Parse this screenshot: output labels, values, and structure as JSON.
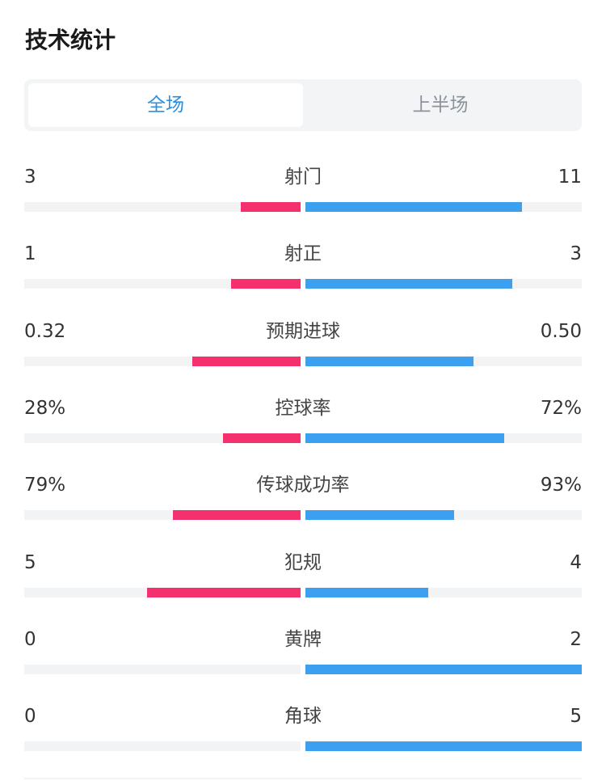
{
  "page": {
    "title": "技术统计"
  },
  "tabs": [
    {
      "label": "全场",
      "active": true
    },
    {
      "label": "上半场",
      "active": false
    }
  ],
  "colors": {
    "home": "#f5306f",
    "away": "#3d9ff0",
    "active_tab": "#2a8fe0"
  },
  "stats": [
    {
      "label": "射门",
      "home": "3",
      "away": "11",
      "home_fill": 0.216,
      "away_fill": 0.784
    },
    {
      "label": "射正",
      "home": "1",
      "away": "3",
      "home_fill": 0.251,
      "away_fill": 0.749
    },
    {
      "label": "预期进球",
      "home": "0.32",
      "away": "0.50",
      "home_fill": 0.392,
      "away_fill": 0.608
    },
    {
      "label": "控球率",
      "home": "28%",
      "away": "72%",
      "home_fill": 0.28,
      "away_fill": 0.72
    },
    {
      "label": "传球成功率",
      "home": "79%",
      "away": "93%",
      "home_fill": 0.462,
      "away_fill": 0.538
    },
    {
      "label": "犯规",
      "home": "5",
      "away": "4",
      "home_fill": 0.556,
      "away_fill": 0.444
    },
    {
      "label": "黄牌",
      "home": "0",
      "away": "2",
      "home_fill": 0.0,
      "away_fill": 1.0
    },
    {
      "label": "角球",
      "home": "0",
      "away": "5",
      "home_fill": 0.0,
      "away_fill": 1.0
    }
  ]
}
